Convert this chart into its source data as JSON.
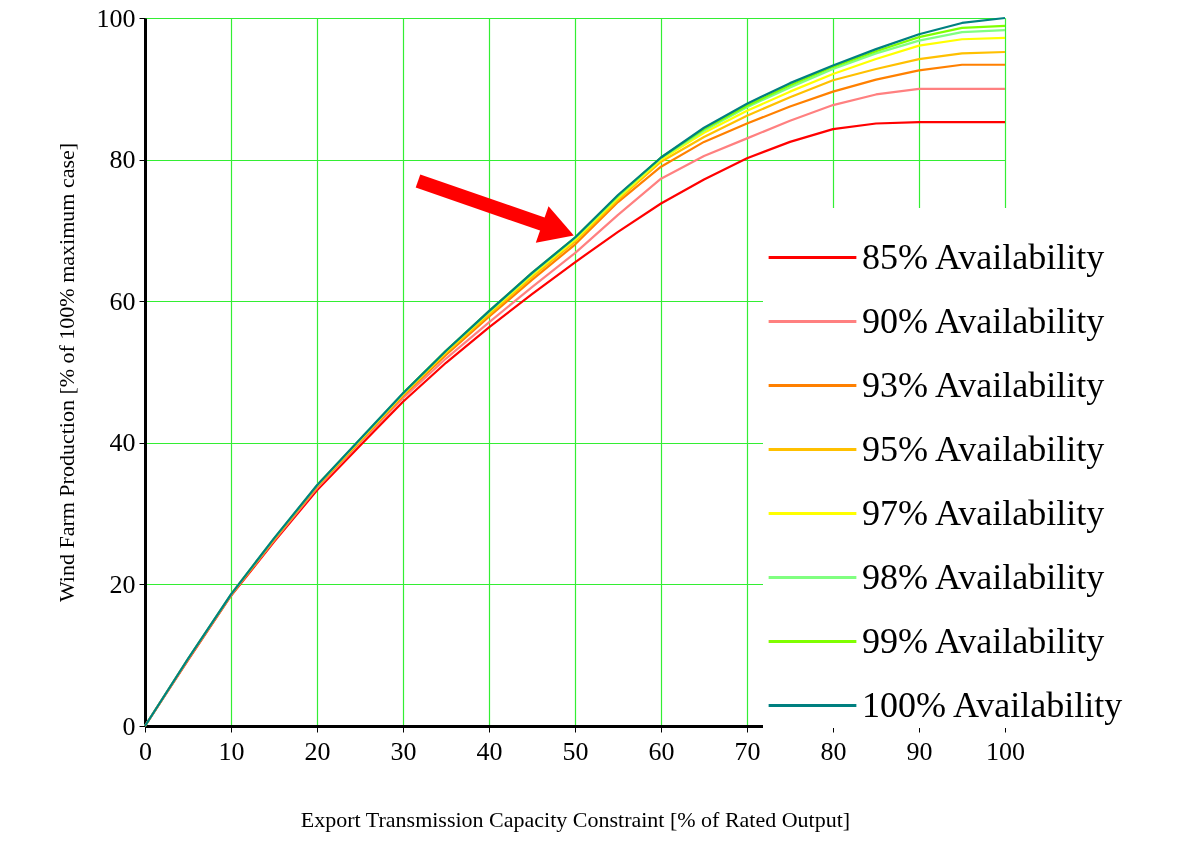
{
  "chart_data": {
    "type": "line",
    "xlabel": "Export Transmission Capacity Constraint [% of Rated Output]",
    "ylabel": "Wind Farm Production [% of 100% maximum case]",
    "x": [
      0,
      5,
      10,
      15,
      20,
      25,
      30,
      35,
      40,
      45,
      50,
      55,
      60,
      65,
      70,
      75,
      80,
      85,
      90,
      95,
      100
    ],
    "series": [
      {
        "name": "85% Availability",
        "color": "#ff0000",
        "values": [
          0,
          9.3,
          18.4,
          26,
          33.3,
          39.6,
          45.8,
          51.3,
          56.3,
          61,
          65.5,
          69.8,
          73.8,
          77.2,
          80.2,
          82.5,
          84.3,
          85.1,
          85.3,
          85.3,
          85.3
        ]
      },
      {
        "name": "90% Availability",
        "color": "#ff8080",
        "values": [
          0,
          9.4,
          18.5,
          26.2,
          33.6,
          40,
          46.3,
          51.9,
          57,
          62,
          66.8,
          72.2,
          77.3,
          80.5,
          83,
          85.5,
          87.7,
          89.2,
          90,
          90,
          90
        ]
      },
      {
        "name": "93% Availability",
        "color": "#ff8000",
        "values": [
          0,
          9.4,
          18.5,
          26.3,
          33.8,
          40.2,
          46.6,
          52.4,
          57.8,
          63,
          68,
          74,
          79,
          82.5,
          85.1,
          87.5,
          89.6,
          91.3,
          92.6,
          93.4,
          93.4
        ]
      },
      {
        "name": "95% Availability",
        "color": "#ffc000",
        "values": [
          null,
          null,
          18.6,
          26.4,
          33.9,
          40.3,
          46.8,
          52.7,
          58.1,
          63.4,
          68.4,
          74.3,
          79.7,
          83.2,
          86.2,
          88.8,
          91.2,
          92.8,
          94.2,
          95,
          95.2
        ]
      },
      {
        "name": "97% Availability",
        "color": "#ffff00",
        "values": [
          null,
          null,
          null,
          null,
          34,
          40.4,
          46.9,
          52.9,
          58.4,
          63.7,
          68.7,
          74.6,
          80,
          83.8,
          86.9,
          89.6,
          92.1,
          94.2,
          96.1,
          97,
          97.2
        ]
      },
      {
        "name": "98% Availability",
        "color": "#80ff80",
        "values": [
          0,
          9.5,
          18.6,
          26.5,
          34,
          40.5,
          47,
          53,
          58.5,
          63.9,
          68.9,
          74.8,
          80.2,
          84.1,
          87.4,
          90.2,
          92.8,
          95,
          96.8,
          98,
          98.3
        ]
      },
      {
        "name": "99% Availability",
        "color": "#80ff00",
        "values": [
          null,
          null,
          null,
          null,
          null,
          null,
          47,
          53,
          58.6,
          64,
          69,
          74.9,
          80.3,
          84.3,
          87.6,
          90.5,
          93.1,
          95.3,
          97.3,
          98.6,
          98.9
        ]
      },
      {
        "name": "100% Availability",
        "color": "#008080",
        "values": [
          0,
          9.5,
          18.6,
          26.5,
          34,
          40.5,
          47,
          53,
          58.6,
          64,
          69,
          75,
          80.3,
          84.5,
          87.9,
          90.8,
          93.3,
          95.6,
          97.7,
          99.3,
          100
        ]
      }
    ],
    "xlim": [
      0,
      100
    ],
    "xticks": [
      0,
      10,
      20,
      30,
      40,
      50,
      60,
      70,
      80,
      90,
      100
    ],
    "ylim": [
      0,
      100
    ],
    "yticks": [
      0,
      20,
      40,
      60,
      80,
      100
    ],
    "grid": true,
    "legend": "right",
    "marker": "none",
    "line_style": "solid"
  }
}
